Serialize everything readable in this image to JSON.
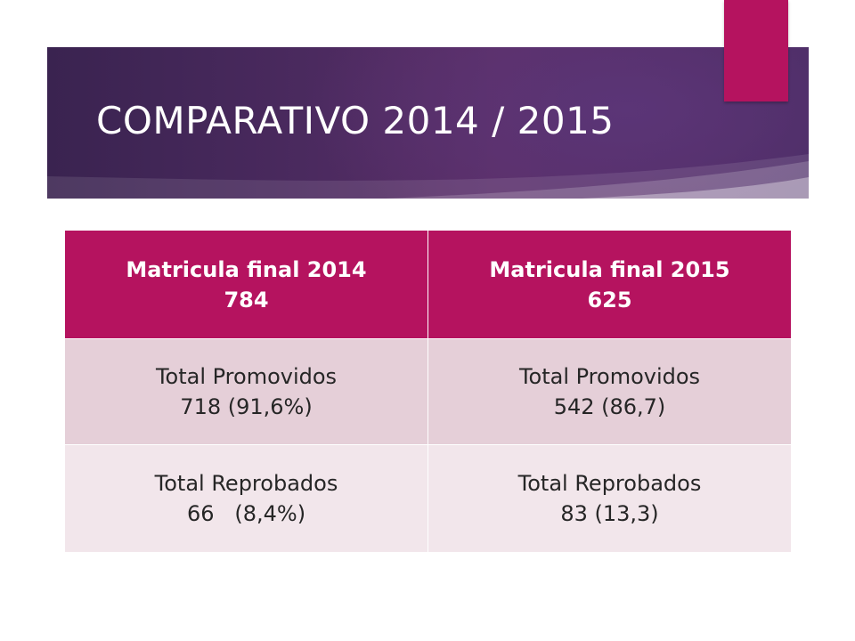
{
  "slide": {
    "title": "COMPARATIVO 2014 / 2015",
    "colors": {
      "banner": "#4b2a5f",
      "accent": "#b5135f",
      "header_fill": "#b5135f",
      "row_odd_fill": "#e5cfd8",
      "row_even_fill": "#f2e6eb",
      "body_text": "#262626"
    }
  },
  "table": {
    "headers": [
      {
        "line1": "Matricula final 2014",
        "line2": "784"
      },
      {
        "line1": "Matricula final 2015",
        "line2": "625"
      }
    ],
    "rows": [
      [
        {
          "line1": "Total Promovidos",
          "line2": "718 (91,6%)"
        },
        {
          "line1": "Total Promovidos",
          "line2": "542 (86,7)"
        }
      ],
      [
        {
          "line1": "Total Reprobados",
          "line2": "66   (8,4%)"
        },
        {
          "line1": "Total Reprobados",
          "line2": "83 (13,3)"
        }
      ]
    ]
  }
}
